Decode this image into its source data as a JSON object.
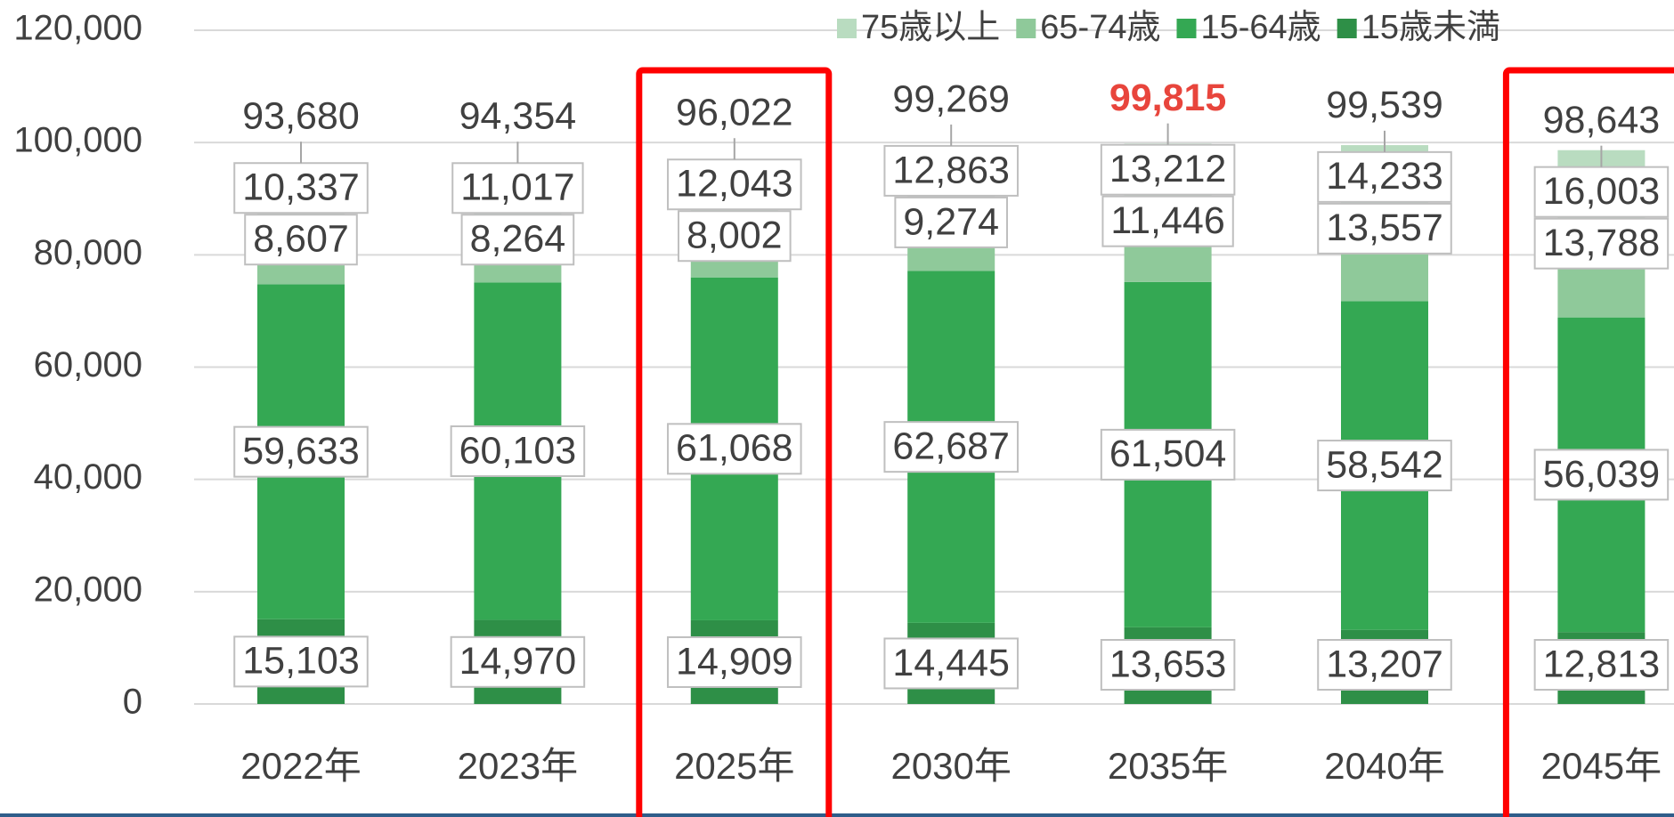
{
  "chart_data": {
    "type": "stacked_bar",
    "categories": [
      "2022年",
      "2023年",
      "2025年",
      "2030年",
      "2035年",
      "2040年",
      "2045年"
    ],
    "series": [
      {
        "name": "15歳未満",
        "color": "#2e8f47",
        "values": [
          15103,
          14970,
          14909,
          14445,
          13653,
          13207,
          12813
        ],
        "value_labels": [
          "15,103",
          "14,970",
          "14,909",
          "14,445",
          "13,653",
          "13,207",
          "12,813"
        ]
      },
      {
        "name": "15-64歳",
        "color": "#34a853",
        "values": [
          59633,
          60103,
          61068,
          62687,
          61504,
          58542,
          56039
        ],
        "value_labels": [
          "59,633",
          "60,103",
          "61,068",
          "62,687",
          "61,504",
          "58,542",
          "56,039"
        ]
      },
      {
        "name": "65-74歳",
        "color": "#8fc99a",
        "values": [
          8607,
          8264,
          8002,
          9274,
          11446,
          13557,
          13788
        ],
        "value_labels": [
          "8,607",
          "8,264",
          "8,002",
          "9,274",
          "11,446",
          "13,557",
          "13,788"
        ]
      },
      {
        "name": "75歳以上",
        "color": "#b9dcc0",
        "values": [
          10337,
          11017,
          12043,
          12863,
          13212,
          14233,
          16003
        ],
        "value_labels": [
          "10,337",
          "11,017",
          "12,043",
          "12,863",
          "13,212",
          "14,233",
          "16,003"
        ]
      }
    ],
    "totals": [
      93680,
      94354,
      96022,
      99269,
      99815,
      99539,
      98643
    ],
    "total_labels": [
      "93,680",
      "94,354",
      "96,022",
      "99,269",
      "99,815",
      "99,539",
      "98,643"
    ],
    "ylim": [
      0,
      120000
    ],
    "yticks": [
      0,
      {
        "value": 20000,
        "label": "20,000"
      },
      {
        "value": 40000,
        "label": "40,000"
      },
      {
        "value": 60000,
        "label": "60,000"
      },
      {
        "value": 80000,
        "label": "80,000"
      },
      {
        "value": 100000,
        "label": "100,000"
      },
      {
        "value": 120000,
        "label": "120,000"
      }
    ],
    "grid": true,
    "legend": "top-right",
    "highlight": [
      2,
      6
    ],
    "highlight_color": "#ff0000",
    "emphasis": 4,
    "emphasis_color": "#e8453c"
  }
}
